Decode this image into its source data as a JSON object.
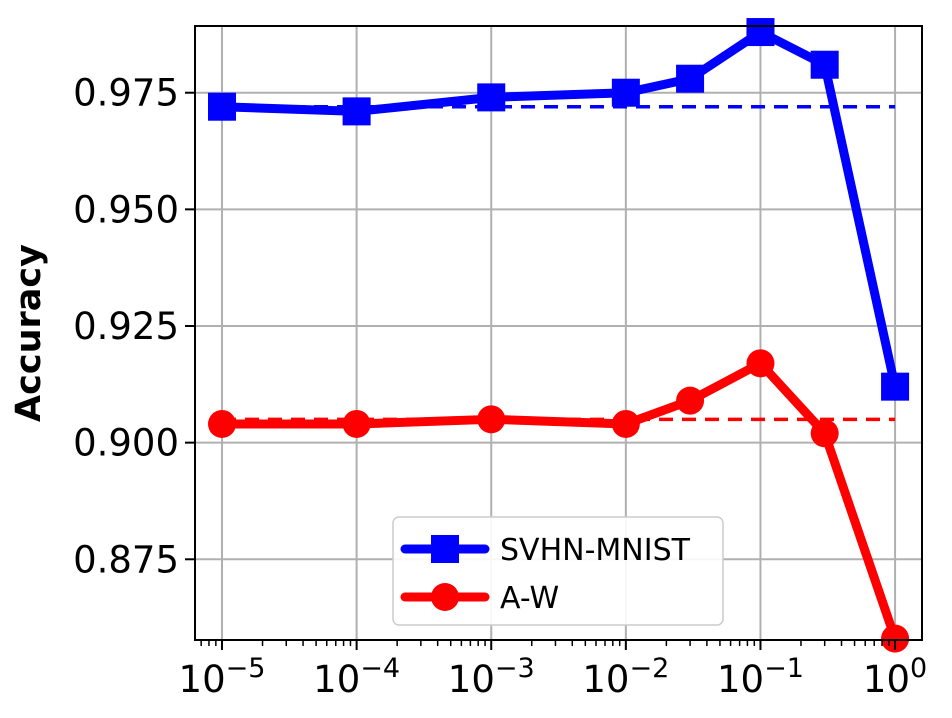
{
  "chart_data": {
    "type": "line",
    "title": "",
    "xlabel": "",
    "ylabel": "Accuracy",
    "x_scale": "log",
    "xlim": [
      6.3e-06,
      1.585
    ],
    "ylim": [
      0.8577,
      0.9893
    ],
    "grid": true,
    "legend_position": "lower-center",
    "x_ticks": [
      {
        "value": 1e-05,
        "label_base": "10",
        "label_exp": "−5"
      },
      {
        "value": 0.0001,
        "label_base": "10",
        "label_exp": "−4"
      },
      {
        "value": 0.001,
        "label_base": "10",
        "label_exp": "−3"
      },
      {
        "value": 0.01,
        "label_base": "10",
        "label_exp": "−2"
      },
      {
        "value": 0.1,
        "label_base": "10",
        "label_exp": "−1"
      },
      {
        "value": 1,
        "label_base": "10",
        "label_exp": "0"
      }
    ],
    "y_ticks": [
      {
        "value": 0.875,
        "label": "0.875"
      },
      {
        "value": 0.9,
        "label": "0.900"
      },
      {
        "value": 0.925,
        "label": "0.925"
      },
      {
        "value": 0.95,
        "label": "0.950"
      },
      {
        "value": 0.975,
        "label": "0.975"
      }
    ],
    "series": [
      {
        "name": "SVHN-MNIST",
        "color": "#0000ff",
        "marker": "square",
        "x": [
          1e-05,
          0.0001,
          0.001,
          0.01,
          0.03,
          0.1,
          0.3,
          1
        ],
        "values": [
          0.972,
          0.971,
          0.974,
          0.975,
          0.978,
          0.988,
          0.981,
          0.912
        ],
        "baseline": 0.972
      },
      {
        "name": "A-W",
        "color": "#ff0000",
        "marker": "circle",
        "x": [
          1e-05,
          0.0001,
          0.001,
          0.01,
          0.03,
          0.1,
          0.3,
          1
        ],
        "values": [
          0.904,
          0.904,
          0.905,
          0.904,
          0.909,
          0.917,
          0.902,
          0.858
        ],
        "baseline": 0.905
      }
    ]
  }
}
